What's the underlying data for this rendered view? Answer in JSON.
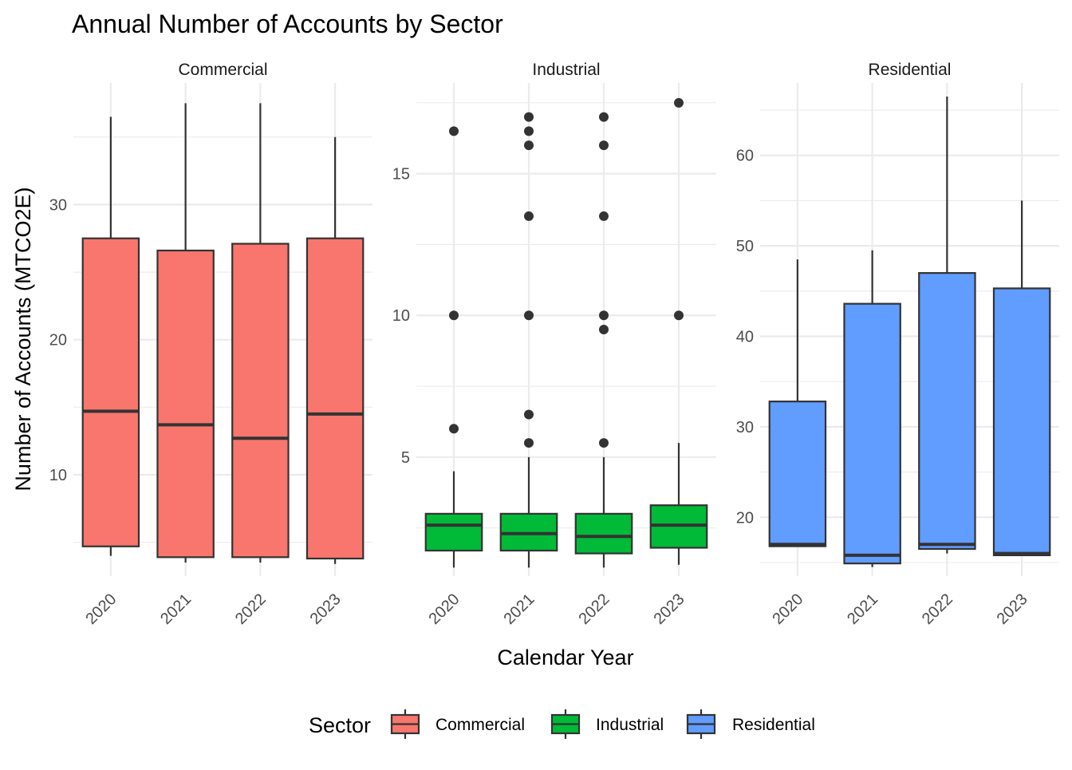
{
  "chart_data": {
    "type": "boxplot",
    "title": "Annual Number of Accounts by Sector",
    "xlabel": "Calendar Year",
    "ylabel": "Number of Accounts (MTCO2E)",
    "categories": [
      "2020",
      "2021",
      "2022",
      "2023"
    ],
    "legend": {
      "title": "Sector",
      "position": "bottom",
      "items": [
        {
          "label": "Commercial",
          "color": "#F8766D"
        },
        {
          "label": "Industrial",
          "color": "#00BA38"
        },
        {
          "label": "Residential",
          "color": "#619CFF"
        }
      ]
    },
    "facets": [
      {
        "name": "Commercial",
        "color": "#F8766D",
        "ylim": [
          2.5,
          39.0
        ],
        "yticks": [
          10,
          20,
          30
        ],
        "boxes": [
          {
            "x": "2020",
            "lower": 4.0,
            "q1": 4.7,
            "median": 14.7,
            "q3": 27.5,
            "upper": 36.5,
            "outliers": []
          },
          {
            "x": "2021",
            "lower": 3.5,
            "q1": 3.9,
            "median": 13.7,
            "q3": 26.6,
            "upper": 37.5,
            "outliers": []
          },
          {
            "x": "2022",
            "lower": 3.5,
            "q1": 3.9,
            "median": 12.7,
            "q3": 27.1,
            "upper": 37.5,
            "outliers": []
          },
          {
            "x": "2023",
            "lower": 3.4,
            "q1": 3.8,
            "median": 14.5,
            "q3": 27.5,
            "upper": 35.0,
            "outliers": []
          }
        ]
      },
      {
        "name": "Industrial",
        "color": "#00BA38",
        "ylim": [
          0.8,
          18.2
        ],
        "yticks": [
          5,
          10,
          15
        ],
        "boxes": [
          {
            "x": "2020",
            "lower": 1.1,
            "q1": 1.7,
            "median": 2.6,
            "q3": 3.0,
            "upper": 4.5,
            "outliers": [
              6.0,
              10.0,
              16.5
            ]
          },
          {
            "x": "2021",
            "lower": 1.1,
            "q1": 1.7,
            "median": 2.3,
            "q3": 3.0,
            "upper": 5.0,
            "outliers": [
              5.5,
              6.5,
              10.0,
              13.5,
              16.0,
              16.5,
              17.0
            ]
          },
          {
            "x": "2022",
            "lower": 1.1,
            "q1": 1.6,
            "median": 2.2,
            "q3": 3.0,
            "upper": 5.0,
            "outliers": [
              5.5,
              9.5,
              10.0,
              13.5,
              16.0,
              17.0
            ]
          },
          {
            "x": "2023",
            "lower": 1.2,
            "q1": 1.8,
            "median": 2.6,
            "q3": 3.3,
            "upper": 5.5,
            "outliers": [
              10.0,
              17.5
            ]
          }
        ]
      },
      {
        "name": "Residential",
        "color": "#619CFF",
        "ylim": [
          13.5,
          68.0
        ],
        "yticks": [
          20,
          30,
          40,
          50,
          60
        ],
        "boxes": [
          {
            "x": "2020",
            "lower": 16.8,
            "q1": 16.8,
            "median": 17.0,
            "q3": 32.8,
            "upper": 48.5,
            "outliers": []
          },
          {
            "x": "2021",
            "lower": 14.5,
            "q1": 14.9,
            "median": 15.8,
            "q3": 43.6,
            "upper": 49.5,
            "outliers": []
          },
          {
            "x": "2022",
            "lower": 16.0,
            "q1": 16.5,
            "median": 17.0,
            "q3": 47.0,
            "upper": 66.5,
            "outliers": []
          },
          {
            "x": "2023",
            "lower": 15.8,
            "q1": 15.8,
            "median": 16.0,
            "q3": 45.3,
            "upper": 55.0,
            "outliers": []
          }
        ]
      }
    ]
  }
}
